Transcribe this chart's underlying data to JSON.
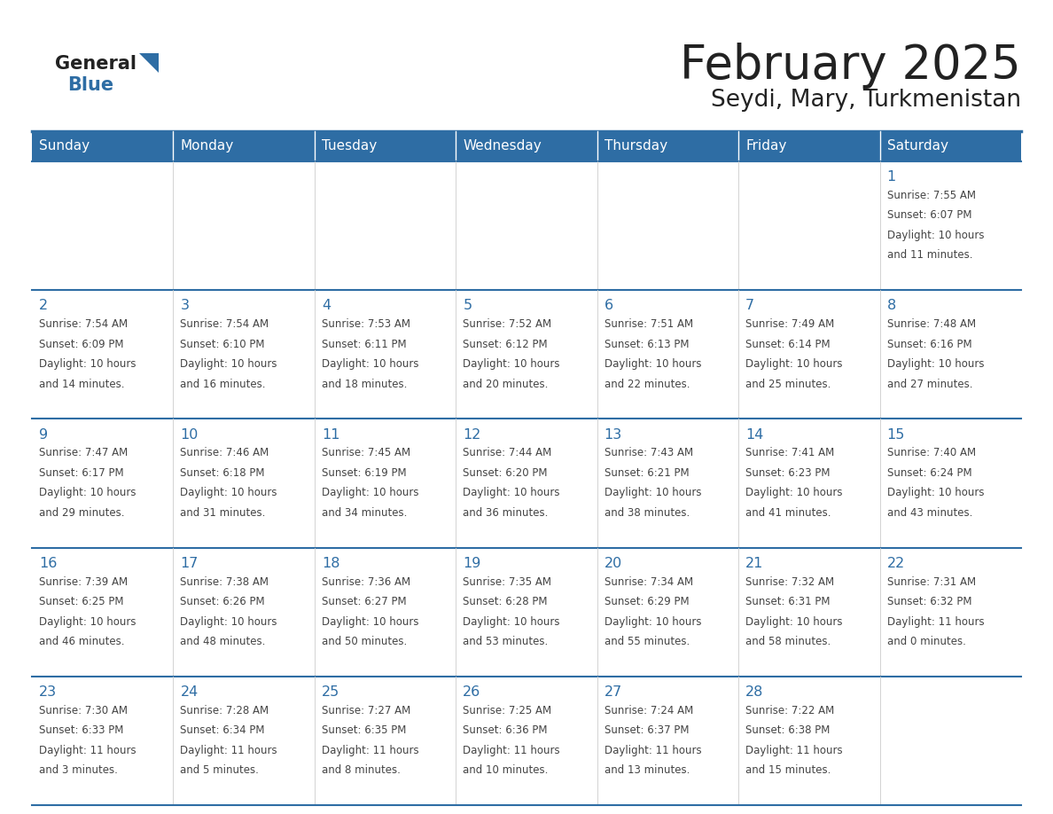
{
  "title": "February 2025",
  "subtitle": "Seydi, Mary, Turkmenistan",
  "header_bg": "#2E6DA4",
  "header_text_color": "#FFFFFF",
  "day_number_color": "#2E6DA4",
  "text_color": "#444444",
  "line_color": "#2E6DA4",
  "days_of_week": [
    "Sunday",
    "Monday",
    "Tuesday",
    "Wednesday",
    "Thursday",
    "Friday",
    "Saturday"
  ],
  "weeks": [
    [
      {
        "day": null,
        "info": null
      },
      {
        "day": null,
        "info": null
      },
      {
        "day": null,
        "info": null
      },
      {
        "day": null,
        "info": null
      },
      {
        "day": null,
        "info": null
      },
      {
        "day": null,
        "info": null
      },
      {
        "day": "1",
        "lines": [
          "Sunrise: 7:55 AM",
          "Sunset: 6:07 PM",
          "Daylight: 10 hours",
          "and 11 minutes."
        ]
      }
    ],
    [
      {
        "day": "2",
        "lines": [
          "Sunrise: 7:54 AM",
          "Sunset: 6:09 PM",
          "Daylight: 10 hours",
          "and 14 minutes."
        ]
      },
      {
        "day": "3",
        "lines": [
          "Sunrise: 7:54 AM",
          "Sunset: 6:10 PM",
          "Daylight: 10 hours",
          "and 16 minutes."
        ]
      },
      {
        "day": "4",
        "lines": [
          "Sunrise: 7:53 AM",
          "Sunset: 6:11 PM",
          "Daylight: 10 hours",
          "and 18 minutes."
        ]
      },
      {
        "day": "5",
        "lines": [
          "Sunrise: 7:52 AM",
          "Sunset: 6:12 PM",
          "Daylight: 10 hours",
          "and 20 minutes."
        ]
      },
      {
        "day": "6",
        "lines": [
          "Sunrise: 7:51 AM",
          "Sunset: 6:13 PM",
          "Daylight: 10 hours",
          "and 22 minutes."
        ]
      },
      {
        "day": "7",
        "lines": [
          "Sunrise: 7:49 AM",
          "Sunset: 6:14 PM",
          "Daylight: 10 hours",
          "and 25 minutes."
        ]
      },
      {
        "day": "8",
        "lines": [
          "Sunrise: 7:48 AM",
          "Sunset: 6:16 PM",
          "Daylight: 10 hours",
          "and 27 minutes."
        ]
      }
    ],
    [
      {
        "day": "9",
        "lines": [
          "Sunrise: 7:47 AM",
          "Sunset: 6:17 PM",
          "Daylight: 10 hours",
          "and 29 minutes."
        ]
      },
      {
        "day": "10",
        "lines": [
          "Sunrise: 7:46 AM",
          "Sunset: 6:18 PM",
          "Daylight: 10 hours",
          "and 31 minutes."
        ]
      },
      {
        "day": "11",
        "lines": [
          "Sunrise: 7:45 AM",
          "Sunset: 6:19 PM",
          "Daylight: 10 hours",
          "and 34 minutes."
        ]
      },
      {
        "day": "12",
        "lines": [
          "Sunrise: 7:44 AM",
          "Sunset: 6:20 PM",
          "Daylight: 10 hours",
          "and 36 minutes."
        ]
      },
      {
        "day": "13",
        "lines": [
          "Sunrise: 7:43 AM",
          "Sunset: 6:21 PM",
          "Daylight: 10 hours",
          "and 38 minutes."
        ]
      },
      {
        "day": "14",
        "lines": [
          "Sunrise: 7:41 AM",
          "Sunset: 6:23 PM",
          "Daylight: 10 hours",
          "and 41 minutes."
        ]
      },
      {
        "day": "15",
        "lines": [
          "Sunrise: 7:40 AM",
          "Sunset: 6:24 PM",
          "Daylight: 10 hours",
          "and 43 minutes."
        ]
      }
    ],
    [
      {
        "day": "16",
        "lines": [
          "Sunrise: 7:39 AM",
          "Sunset: 6:25 PM",
          "Daylight: 10 hours",
          "and 46 minutes."
        ]
      },
      {
        "day": "17",
        "lines": [
          "Sunrise: 7:38 AM",
          "Sunset: 6:26 PM",
          "Daylight: 10 hours",
          "and 48 minutes."
        ]
      },
      {
        "day": "18",
        "lines": [
          "Sunrise: 7:36 AM",
          "Sunset: 6:27 PM",
          "Daylight: 10 hours",
          "and 50 minutes."
        ]
      },
      {
        "day": "19",
        "lines": [
          "Sunrise: 7:35 AM",
          "Sunset: 6:28 PM",
          "Daylight: 10 hours",
          "and 53 minutes."
        ]
      },
      {
        "day": "20",
        "lines": [
          "Sunrise: 7:34 AM",
          "Sunset: 6:29 PM",
          "Daylight: 10 hours",
          "and 55 minutes."
        ]
      },
      {
        "day": "21",
        "lines": [
          "Sunrise: 7:32 AM",
          "Sunset: 6:31 PM",
          "Daylight: 10 hours",
          "and 58 minutes."
        ]
      },
      {
        "day": "22",
        "lines": [
          "Sunrise: 7:31 AM",
          "Sunset: 6:32 PM",
          "Daylight: 11 hours",
          "and 0 minutes."
        ]
      }
    ],
    [
      {
        "day": "23",
        "lines": [
          "Sunrise: 7:30 AM",
          "Sunset: 6:33 PM",
          "Daylight: 11 hours",
          "and 3 minutes."
        ]
      },
      {
        "day": "24",
        "lines": [
          "Sunrise: 7:28 AM",
          "Sunset: 6:34 PM",
          "Daylight: 11 hours",
          "and 5 minutes."
        ]
      },
      {
        "day": "25",
        "lines": [
          "Sunrise: 7:27 AM",
          "Sunset: 6:35 PM",
          "Daylight: 11 hours",
          "and 8 minutes."
        ]
      },
      {
        "day": "26",
        "lines": [
          "Sunrise: 7:25 AM",
          "Sunset: 6:36 PM",
          "Daylight: 11 hours",
          "and 10 minutes."
        ]
      },
      {
        "day": "27",
        "lines": [
          "Sunrise: 7:24 AM",
          "Sunset: 6:37 PM",
          "Daylight: 11 hours",
          "and 13 minutes."
        ]
      },
      {
        "day": "28",
        "lines": [
          "Sunrise: 7:22 AM",
          "Sunset: 6:38 PM",
          "Daylight: 11 hours",
          "and 15 minutes."
        ]
      },
      {
        "day": null,
        "lines": null
      }
    ]
  ]
}
